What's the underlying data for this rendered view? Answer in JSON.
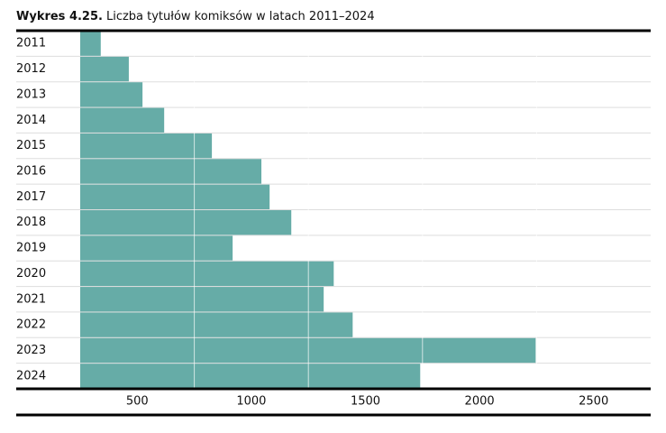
{
  "chart_data": {
    "type": "bar",
    "orientation": "horizontal",
    "title_label": "Wykres 4.25.",
    "title": "Liczba tytułów komiksów w latach 2011–2024",
    "categories": [
      "2011",
      "2012",
      "2013",
      "2014",
      "2015",
      "2016",
      "2017",
      "2018",
      "2019",
      "2020",
      "2021",
      "2022",
      "2023",
      "2024"
    ],
    "values": [
      340,
      463,
      523,
      618,
      827,
      1044,
      1080,
      1175,
      918,
      1361,
      1317,
      1444,
      2246,
      1740
    ],
    "color": "#66aca7",
    "xlim": [
      250,
      2750
    ],
    "xticks": [
      500,
      1000,
      1500,
      2000,
      2500
    ],
    "grid_lines": [
      750,
      1250,
      1750,
      2250
    ]
  }
}
